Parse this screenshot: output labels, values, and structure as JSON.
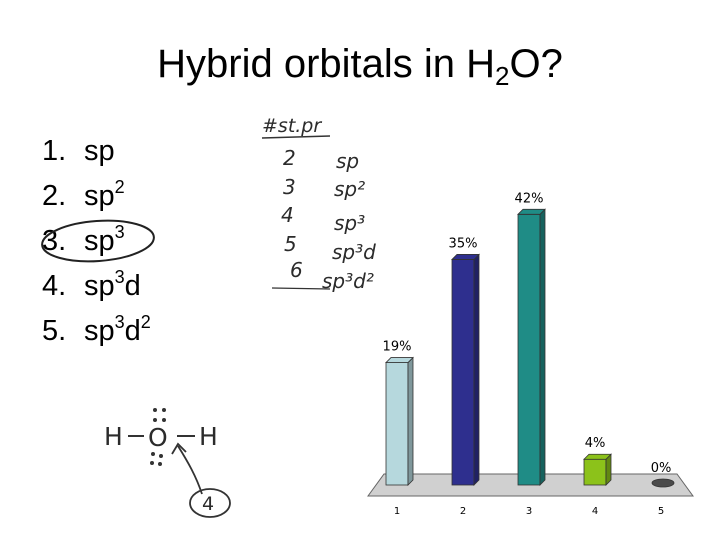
{
  "slide": {
    "title_main": "Hybrid orbitals in H",
    "title_sub": "2",
    "title_end": "O?"
  },
  "options": [
    {
      "num": "1.",
      "base": "sp",
      "sup1": "",
      "tail": "",
      "sup2": ""
    },
    {
      "num": "2.",
      "base": "sp",
      "sup1": "2",
      "tail": "",
      "sup2": ""
    },
    {
      "num": "3.",
      "base": "sp",
      "sup1": "3",
      "tail": "",
      "sup2": ""
    },
    {
      "num": "4.",
      "base": "sp",
      "sup1": "3",
      "tail": "d",
      "sup2": ""
    },
    {
      "num": "5.",
      "base": "sp",
      "sup1": "3",
      "tail": "d",
      "sup2": "2"
    }
  ],
  "handwriting": {
    "header": "#st.pr",
    "pairs_numbers": [
      "2",
      "3",
      "4",
      "5",
      "6"
    ],
    "pairs_hybrid": [
      "sp",
      "sp²",
      "sp³",
      "sp³d",
      "sp³d²"
    ],
    "lewis_h_left": "H",
    "lewis_o": "O",
    "lewis_h_right": "H",
    "circled_answer": "4"
  },
  "colors": {
    "bar1": "#b6d8dd",
    "bar2": "#2e2f8e",
    "bar3": "#1f8c86",
    "bar4": "#8cc21a",
    "bar5": "#4a4a4a",
    "floor": "#d0d0d0"
  },
  "chart_data": {
    "type": "bar",
    "categories": [
      "1",
      "2",
      "3",
      "4",
      "5"
    ],
    "values": [
      19,
      35,
      42,
      4,
      0
    ],
    "data_labels": [
      "19%",
      "35%",
      "42%",
      "4%",
      "0%"
    ],
    "ylim": [
      0,
      45
    ],
    "title": "",
    "xlabel": "",
    "ylabel": ""
  }
}
